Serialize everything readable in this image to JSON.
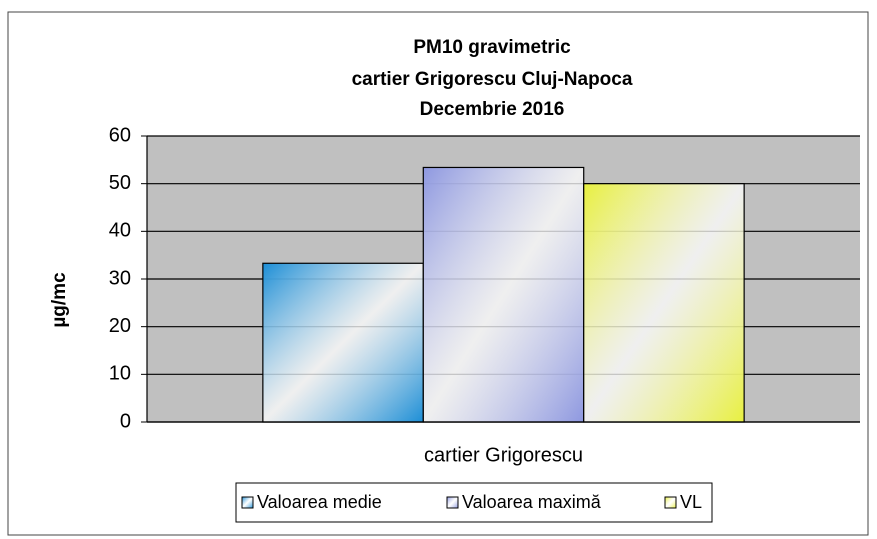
{
  "chart_data": {
    "type": "bar",
    "title": [
      "PM10 gravimetric",
      "cartier Grigorescu Cluj-Napoca",
      "Decembrie 2016"
    ],
    "y_label": "µg/mc",
    "categories": [
      "cartier Grigorescu"
    ],
    "series": [
      {
        "name": "Valoarea medie",
        "color": "#1c8ed6",
        "values": [
          33.3
        ]
      },
      {
        "name": "Valoarea maximă",
        "color": "#8e98e0",
        "values": [
          53.4
        ]
      },
      {
        "name": "VL",
        "color": "#e8f040",
        "values": [
          50
        ]
      }
    ],
    "ylim": [
      0,
      60
    ],
    "yticks": [
      0,
      10,
      20,
      30,
      40,
      50,
      60
    ],
    "grid": true,
    "legend": "bottom"
  }
}
